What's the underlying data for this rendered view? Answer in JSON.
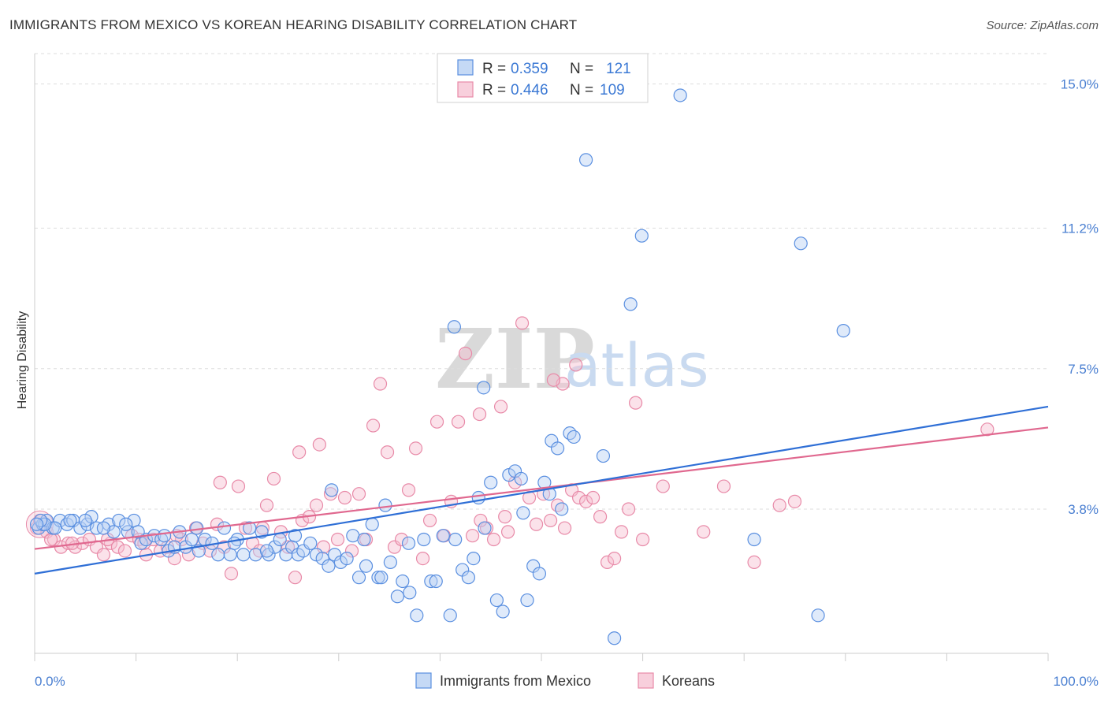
{
  "title": "IMMIGRANTS FROM MEXICO VS KOREAN HEARING DISABILITY CORRELATION CHART",
  "source": "Source: ZipAtlas.com",
  "watermark": {
    "zip": "ZIP",
    "atlas": "atlas"
  },
  "colors": {
    "blue": "#4a86e8",
    "pink": "#e879a0",
    "blue_line": "#2f6fd6",
    "pink_line": "#e0688f",
    "tick_text": "#4a7fd1"
  },
  "legend_box": {
    "rows": [
      {
        "r_label": "R = ",
        "r_value": "0.359",
        "n_label": "N = ",
        "n_value": "121"
      },
      {
        "r_label": "R = ",
        "r_value": "0.446",
        "n_label": "N = ",
        "n_value": "109"
      }
    ]
  },
  "chart_data": {
    "type": "scatter",
    "title": "IMMIGRANTS FROM MEXICO VS KOREAN HEARING DISABILITY CORRELATION CHART",
    "xlabel": "",
    "ylabel": "Hearing Disability",
    "xlim": [
      0,
      100
    ],
    "ylim": [
      0,
      15.8
    ],
    "x_tick_labels": [
      "0.0%",
      "100.0%"
    ],
    "y_ticks": [
      3.8,
      7.5,
      11.2,
      15.0
    ],
    "y_tick_labels": [
      "3.8%",
      "7.5%",
      "11.2%",
      "15.0%"
    ],
    "grid": "horizontal dashed",
    "legend_position": "bottom-center",
    "series": [
      {
        "name": "Immigrants from Mexico",
        "r": 0.359,
        "n": 121,
        "trend": [
          [
            0,
            2.1
          ],
          [
            100,
            6.5
          ]
        ],
        "points": [
          [
            0.4,
            3.3
          ],
          [
            0.8,
            3.4
          ],
          [
            1.2,
            3.5
          ],
          [
            1.8,
            3.3
          ],
          [
            2.5,
            3.5
          ],
          [
            3.2,
            3.4
          ],
          [
            3.8,
            3.5
          ],
          [
            4.5,
            3.3
          ],
          [
            5.2,
            3.4
          ],
          [
            5.6,
            3.6
          ],
          [
            6.1,
            3.3
          ],
          [
            7.3,
            3.4
          ],
          [
            8.3,
            3.5
          ],
          [
            9.2,
            3.2
          ],
          [
            9.8,
            3.5
          ],
          [
            10.5,
            2.9
          ],
          [
            11.0,
            3.0
          ],
          [
            11.8,
            3.1
          ],
          [
            12.5,
            3.0
          ],
          [
            13.2,
            2.7
          ],
          [
            13.8,
            2.8
          ],
          [
            14.3,
            3.2
          ],
          [
            14.9,
            2.8
          ],
          [
            15.5,
            3.0
          ],
          [
            16.2,
            2.7
          ],
          [
            16.8,
            3.0
          ],
          [
            17.5,
            2.9
          ],
          [
            18.1,
            2.6
          ],
          [
            18.7,
            3.3
          ],
          [
            19.3,
            2.6
          ],
          [
            20.0,
            3.0
          ],
          [
            20.6,
            2.6
          ],
          [
            21.2,
            3.3
          ],
          [
            21.8,
            2.6
          ],
          [
            22.4,
            3.2
          ],
          [
            23.1,
            2.6
          ],
          [
            23.7,
            2.8
          ],
          [
            24.2,
            3.0
          ],
          [
            24.8,
            2.6
          ],
          [
            25.4,
            2.8
          ],
          [
            26.0,
            2.6
          ],
          [
            26.5,
            2.7
          ],
          [
            27.2,
            2.9
          ],
          [
            27.8,
            2.6
          ],
          [
            28.4,
            2.5
          ],
          [
            29.0,
            2.3
          ],
          [
            29.6,
            2.6
          ],
          [
            30.2,
            2.4
          ],
          [
            30.8,
            2.5
          ],
          [
            31.4,
            3.1
          ],
          [
            32.0,
            2.0
          ],
          [
            32.7,
            2.3
          ],
          [
            33.3,
            3.4
          ],
          [
            33.9,
            2.0
          ],
          [
            34.6,
            3.9
          ],
          [
            35.1,
            2.4
          ],
          [
            35.8,
            1.5
          ],
          [
            36.3,
            1.9
          ],
          [
            37.0,
            1.6
          ],
          [
            37.7,
            1.0
          ],
          [
            38.4,
            3.0
          ],
          [
            39.1,
            1.9
          ],
          [
            39.6,
            1.9
          ],
          [
            40.3,
            3.1
          ],
          [
            41.0,
            1.0
          ],
          [
            41.5,
            3.0
          ],
          [
            42.2,
            2.2
          ],
          [
            42.8,
            2.0
          ],
          [
            43.3,
            2.5
          ],
          [
            43.8,
            4.1
          ],
          [
            44.4,
            3.3
          ],
          [
            45.0,
            4.5
          ],
          [
            45.6,
            1.4
          ],
          [
            46.2,
            1.1
          ],
          [
            46.8,
            4.7
          ],
          [
            47.4,
            4.8
          ],
          [
            48.0,
            4.6
          ],
          [
            48.6,
            1.4
          ],
          [
            49.2,
            2.3
          ],
          [
            49.8,
            2.1
          ],
          [
            50.3,
            4.5
          ],
          [
            51.0,
            5.6
          ],
          [
            51.6,
            5.4
          ],
          [
            52.0,
            3.8
          ],
          [
            52.8,
            5.8
          ],
          [
            54.4,
            13.0
          ],
          [
            56.1,
            5.2
          ],
          [
            57.2,
            0.4
          ],
          [
            58.8,
            9.2
          ],
          [
            59.9,
            11.0
          ],
          [
            63.7,
            14.7
          ],
          [
            71.0,
            3.0
          ],
          [
            75.6,
            10.8
          ],
          [
            77.3,
            1.0
          ],
          [
            79.8,
            8.5
          ],
          [
            41.4,
            8.6
          ],
          [
            44.3,
            7.0
          ],
          [
            50.8,
            4.2
          ],
          [
            53.2,
            5.7
          ],
          [
            48.2,
            3.7
          ],
          [
            36.9,
            2.9
          ],
          [
            34.2,
            2.0
          ],
          [
            29.3,
            4.3
          ],
          [
            32.5,
            3.0
          ],
          [
            25.7,
            3.1
          ],
          [
            22.9,
            2.7
          ],
          [
            19.7,
            2.9
          ],
          [
            16.0,
            3.3
          ],
          [
            12.8,
            3.1
          ],
          [
            9.0,
            3.4
          ],
          [
            7.8,
            3.2
          ],
          [
            5.0,
            3.5
          ],
          [
            3.5,
            3.5
          ],
          [
            2.0,
            3.3
          ],
          [
            1.0,
            3.4
          ],
          [
            0.6,
            3.5
          ],
          [
            0.2,
            3.4
          ],
          [
            6.8,
            3.3
          ],
          [
            10.2,
            3.2
          ]
        ]
      },
      {
        "name": "Koreans",
        "r": 0.446,
        "n": 109,
        "trend": [
          [
            0,
            2.75
          ],
          [
            100,
            5.95
          ]
        ],
        "points": [
          [
            0.5,
            3.5
          ],
          [
            1.2,
            3.2
          ],
          [
            1.9,
            3.0
          ],
          [
            2.6,
            2.8
          ],
          [
            3.3,
            2.9
          ],
          [
            4.0,
            2.8
          ],
          [
            4.7,
            2.9
          ],
          [
            5.4,
            3.0
          ],
          [
            6.1,
            2.8
          ],
          [
            6.8,
            2.6
          ],
          [
            7.5,
            2.9
          ],
          [
            8.2,
            2.8
          ],
          [
            8.9,
            2.7
          ],
          [
            9.6,
            3.1
          ],
          [
            10.3,
            3.0
          ],
          [
            11.0,
            2.6
          ],
          [
            11.7,
            3.0
          ],
          [
            12.4,
            2.7
          ],
          [
            13.1,
            2.8
          ],
          [
            13.8,
            2.5
          ],
          [
            14.5,
            3.0
          ],
          [
            15.2,
            2.6
          ],
          [
            15.9,
            3.3
          ],
          [
            16.6,
            2.9
          ],
          [
            17.3,
            2.7
          ],
          [
            18.0,
            3.4
          ],
          [
            18.7,
            2.8
          ],
          [
            19.4,
            2.1
          ],
          [
            20.1,
            4.4
          ],
          [
            20.8,
            3.3
          ],
          [
            21.5,
            2.9
          ],
          [
            22.2,
            2.7
          ],
          [
            22.9,
            3.9
          ],
          [
            23.6,
            4.6
          ],
          [
            24.3,
            3.2
          ],
          [
            25.0,
            2.8
          ],
          [
            25.7,
            2.0
          ],
          [
            26.4,
            3.5
          ],
          [
            27.1,
            3.6
          ],
          [
            27.8,
            3.9
          ],
          [
            28.5,
            2.8
          ],
          [
            29.2,
            4.2
          ],
          [
            29.9,
            3.0
          ],
          [
            30.6,
            4.1
          ],
          [
            31.3,
            2.7
          ],
          [
            32.0,
            4.2
          ],
          [
            32.7,
            3.0
          ],
          [
            33.4,
            6.0
          ],
          [
            34.1,
            7.1
          ],
          [
            34.8,
            5.3
          ],
          [
            35.5,
            2.8
          ],
          [
            36.2,
            3.0
          ],
          [
            36.9,
            4.3
          ],
          [
            37.6,
            5.4
          ],
          [
            38.3,
            2.5
          ],
          [
            39.0,
            3.5
          ],
          [
            39.7,
            6.1
          ],
          [
            40.4,
            3.1
          ],
          [
            41.1,
            4.0
          ],
          [
            41.8,
            6.1
          ],
          [
            42.5,
            7.9
          ],
          [
            43.2,
            3.1
          ],
          [
            43.9,
            6.3
          ],
          [
            44.6,
            3.3
          ],
          [
            45.3,
            3.0
          ],
          [
            46.0,
            6.5
          ],
          [
            46.7,
            3.2
          ],
          [
            47.4,
            4.5
          ],
          [
            48.1,
            8.7
          ],
          [
            48.8,
            4.1
          ],
          [
            49.5,
            3.4
          ],
          [
            50.2,
            4.2
          ],
          [
            50.9,
            3.5
          ],
          [
            51.6,
            3.9
          ],
          [
            52.3,
            3.3
          ],
          [
            53.0,
            4.3
          ],
          [
            53.7,
            4.1
          ],
          [
            54.4,
            4.0
          ],
          [
            55.1,
            4.1
          ],
          [
            55.8,
            3.6
          ],
          [
            56.5,
            2.4
          ],
          [
            57.2,
            2.5
          ],
          [
            57.9,
            3.2
          ],
          [
            58.6,
            3.8
          ],
          [
            59.3,
            6.6
          ],
          [
            60.0,
            3.0
          ],
          [
            62.0,
            4.4
          ],
          [
            66.0,
            3.2
          ],
          [
            68.0,
            4.4
          ],
          [
            71.0,
            2.4
          ],
          [
            73.5,
            3.9
          ],
          [
            75.0,
            4.0
          ],
          [
            94.0,
            5.9
          ],
          [
            53.4,
            7.6
          ],
          [
            52.1,
            7.1
          ],
          [
            51.2,
            7.2
          ],
          [
            46.4,
            3.6
          ],
          [
            44.0,
            3.5
          ],
          [
            28.1,
            5.5
          ],
          [
            26.1,
            5.3
          ],
          [
            22.5,
            3.3
          ],
          [
            18.3,
            4.5
          ],
          [
            14.0,
            3.1
          ],
          [
            10.8,
            2.9
          ],
          [
            7.2,
            3.0
          ],
          [
            3.7,
            2.9
          ],
          [
            1.6,
            3.0
          ],
          [
            0.2,
            3.3
          ]
        ]
      }
    ]
  },
  "axes": {
    "ylabel": "Hearing Disability",
    "x_left_label": "0.0%",
    "x_right_label": "100.0%",
    "y_tick_labels": [
      "3.8%",
      "7.5%",
      "11.2%",
      "15.0%"
    ]
  },
  "bottom_legend": [
    {
      "label": "Immigrants from Mexico"
    },
    {
      "label": "Koreans"
    }
  ]
}
